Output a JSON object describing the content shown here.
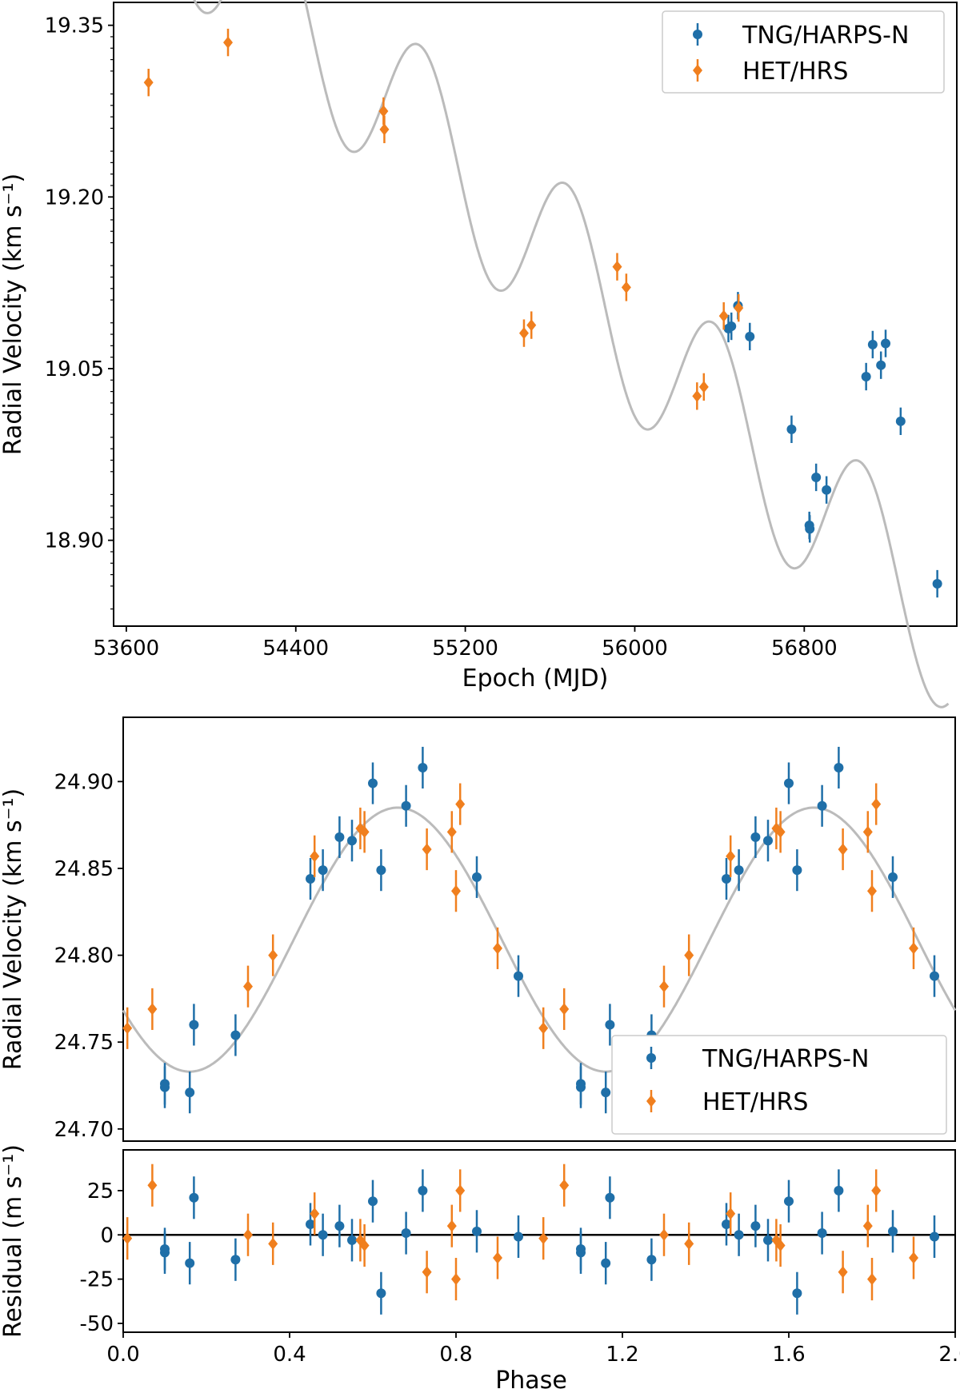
{
  "chart_data": [
    {
      "id": "time",
      "type": "scatter",
      "xlabel": "Epoch (MJD)",
      "ylabel": "Radial Velocity (km s⁻¹)",
      "xlim": [
        53540,
        57520
      ],
      "ylim": [
        18.825,
        19.37
      ],
      "xticks": [
        53600,
        54400,
        55200,
        56000,
        56800
      ],
      "yticks": [
        18.9,
        19.05,
        19.2,
        19.35
      ],
      "ytick_decimals": 2,
      "legend": "top-right",
      "model": {
        "color": "#bbbbbb",
        "x_range": [
          53700,
          57480
        ],
        "offset": 19.5,
        "slope": -0.000175,
        "amplitude": 0.075,
        "period": 693,
        "phase_epoch": 54300
      },
      "series": [
        {
          "name": "TNG/HARPS-N",
          "marker": "circle",
          "color": "#1f6fa8",
          "points": [
            {
              "x": 56442,
              "y": 19.085,
              "err": 0.012
            },
            {
              "x": 56456,
              "y": 19.087,
              "err": 0.012
            },
            {
              "x": 56487,
              "y": 19.105,
              "err": 0.012
            },
            {
              "x": 56543,
              "y": 19.078,
              "err": 0.012
            },
            {
              "x": 56740,
              "y": 18.997,
              "err": 0.012
            },
            {
              "x": 56824,
              "y": 18.913,
              "err": 0.012
            },
            {
              "x": 56826,
              "y": 18.91,
              "err": 0.012
            },
            {
              "x": 56856,
              "y": 18.955,
              "err": 0.012
            },
            {
              "x": 56905,
              "y": 18.944,
              "err": 0.012
            },
            {
              "x": 57092,
              "y": 19.043,
              "err": 0.012
            },
            {
              "x": 57123,
              "y": 19.071,
              "err": 0.012
            },
            {
              "x": 57162,
              "y": 19.053,
              "err": 0.012
            },
            {
              "x": 57184,
              "y": 19.072,
              "err": 0.012
            },
            {
              "x": 57255,
              "y": 19.004,
              "err": 0.012
            },
            {
              "x": 57428,
              "y": 18.862,
              "err": 0.012
            }
          ]
        },
        {
          "name": "HET/HRS",
          "marker": "diamond",
          "color": "#f07f1e",
          "points": [
            {
              "x": 53705,
              "y": 19.3,
              "err": 0.012
            },
            {
              "x": 54080,
              "y": 19.335,
              "err": 0.012
            },
            {
              "x": 54814,
              "y": 19.275,
              "err": 0.012
            },
            {
              "x": 54818,
              "y": 19.259,
              "err": 0.012
            },
            {
              "x": 55477,
              "y": 19.081,
              "err": 0.012
            },
            {
              "x": 55512,
              "y": 19.088,
              "err": 0.012
            },
            {
              "x": 55917,
              "y": 19.139,
              "err": 0.012
            },
            {
              "x": 55960,
              "y": 19.121,
              "err": 0.012
            },
            {
              "x": 56294,
              "y": 19.026,
              "err": 0.012
            },
            {
              "x": 56326,
              "y": 19.034,
              "err": 0.012
            },
            {
              "x": 56420,
              "y": 19.096,
              "err": 0.012
            },
            {
              "x": 56490,
              "y": 19.103,
              "err": 0.012
            }
          ]
        }
      ]
    },
    {
      "id": "phase",
      "type": "scatter",
      "xlabel": "",
      "ylabel": "Radial Velocity (km s⁻¹)",
      "xlim": [
        0.0,
        2.0
      ],
      "ylim": [
        24.693,
        24.937
      ],
      "yticks": [
        24.7,
        24.75,
        24.8,
        24.85,
        24.9
      ],
      "ytick_decimals": 2,
      "legend": "bottom-right",
      "model": {
        "color": "#bbbbbb",
        "type": "sine",
        "mean": 24.809,
        "amplitude": 0.076,
        "peak_phase": 0.66
      },
      "series": [
        {
          "name": "TNG/HARPS-N",
          "marker": "circle",
          "color": "#1f6fa8",
          "points": [
            {
              "x": 0.1,
              "y": 24.726,
              "err": 0.012
            },
            {
              "x": 0.1,
              "y": 24.724,
              "err": 0.012
            },
            {
              "x": 0.16,
              "y": 24.721,
              "err": 0.012
            },
            {
              "x": 0.17,
              "y": 24.76,
              "err": 0.012
            },
            {
              "x": 0.27,
              "y": 24.754,
              "err": 0.012
            },
            {
              "x": 0.45,
              "y": 24.844,
              "err": 0.012
            },
            {
              "x": 0.48,
              "y": 24.849,
              "err": 0.012
            },
            {
              "x": 0.52,
              "y": 24.868,
              "err": 0.012
            },
            {
              "x": 0.55,
              "y": 24.866,
              "err": 0.012
            },
            {
              "x": 0.6,
              "y": 24.899,
              "err": 0.012
            },
            {
              "x": 0.62,
              "y": 24.849,
              "err": 0.012
            },
            {
              "x": 0.68,
              "y": 24.886,
              "err": 0.012
            },
            {
              "x": 0.72,
              "y": 24.908,
              "err": 0.012
            },
            {
              "x": 0.85,
              "y": 24.845,
              "err": 0.012
            },
            {
              "x": 0.95,
              "y": 24.788,
              "err": 0.012
            },
            {
              "x": 1.1,
              "y": 24.726,
              "err": 0.012
            },
            {
              "x": 1.1,
              "y": 24.724,
              "err": 0.012
            },
            {
              "x": 1.16,
              "y": 24.721,
              "err": 0.012
            },
            {
              "x": 1.17,
              "y": 24.76,
              "err": 0.012
            },
            {
              "x": 1.27,
              "y": 24.754,
              "err": 0.012
            },
            {
              "x": 1.45,
              "y": 24.844,
              "err": 0.012
            },
            {
              "x": 1.48,
              "y": 24.849,
              "err": 0.012
            },
            {
              "x": 1.52,
              "y": 24.868,
              "err": 0.012
            },
            {
              "x": 1.55,
              "y": 24.866,
              "err": 0.012
            },
            {
              "x": 1.6,
              "y": 24.899,
              "err": 0.012
            },
            {
              "x": 1.62,
              "y": 24.849,
              "err": 0.012
            },
            {
              "x": 1.68,
              "y": 24.886,
              "err": 0.012
            },
            {
              "x": 1.72,
              "y": 24.908,
              "err": 0.012
            },
            {
              "x": 1.85,
              "y": 24.845,
              "err": 0.012
            },
            {
              "x": 1.95,
              "y": 24.788,
              "err": 0.012
            }
          ]
        },
        {
          "name": "HET/HRS",
          "marker": "diamond",
          "color": "#f07f1e",
          "points": [
            {
              "x": 0.01,
              "y": 24.758,
              "err": 0.012
            },
            {
              "x": 0.07,
              "y": 24.769,
              "err": 0.012
            },
            {
              "x": 0.3,
              "y": 24.782,
              "err": 0.012
            },
            {
              "x": 0.36,
              "y": 24.8,
              "err": 0.012
            },
            {
              "x": 0.46,
              "y": 24.857,
              "err": 0.012
            },
            {
              "x": 0.57,
              "y": 24.873,
              "err": 0.012
            },
            {
              "x": 0.58,
              "y": 24.871,
              "err": 0.012
            },
            {
              "x": 0.73,
              "y": 24.861,
              "err": 0.012
            },
            {
              "x": 0.79,
              "y": 24.871,
              "err": 0.012
            },
            {
              "x": 0.8,
              "y": 24.837,
              "err": 0.012
            },
            {
              "x": 0.81,
              "y": 24.887,
              "err": 0.012
            },
            {
              "x": 0.9,
              "y": 24.804,
              "err": 0.012
            },
            {
              "x": 1.01,
              "y": 24.758,
              "err": 0.012
            },
            {
              "x": 1.06,
              "y": 24.769,
              "err": 0.012
            },
            {
              "x": 1.3,
              "y": 24.782,
              "err": 0.012
            },
            {
              "x": 1.36,
              "y": 24.8,
              "err": 0.012
            },
            {
              "x": 1.46,
              "y": 24.857,
              "err": 0.012
            },
            {
              "x": 1.57,
              "y": 24.873,
              "err": 0.012
            },
            {
              "x": 1.58,
              "y": 24.871,
              "err": 0.012
            },
            {
              "x": 1.73,
              "y": 24.861,
              "err": 0.012
            },
            {
              "x": 1.79,
              "y": 24.871,
              "err": 0.012
            },
            {
              "x": 1.8,
              "y": 24.837,
              "err": 0.012
            },
            {
              "x": 1.81,
              "y": 24.887,
              "err": 0.012
            },
            {
              "x": 1.9,
              "y": 24.804,
              "err": 0.012
            }
          ]
        }
      ]
    },
    {
      "id": "resid",
      "type": "scatter",
      "xlabel": "Phase",
      "ylabel": "Residual (m s⁻¹)",
      "xlim": [
        0.0,
        2.0
      ],
      "ylim": [
        -55,
        48
      ],
      "xticks": [
        0.0,
        0.4,
        0.8,
        1.2,
        1.6,
        2.0
      ],
      "xtick_decimals": 1,
      "yticks": [
        -50,
        -25,
        0,
        25
      ],
      "ytick_decimals": 0,
      "zero_line": true,
      "series": [
        {
          "name": "TNG/HARPS-N",
          "marker": "circle",
          "color": "#1f6fa8",
          "points": [
            {
              "x": 0.1,
              "y": -8,
              "err": 12
            },
            {
              "x": 0.1,
              "y": -10,
              "err": 12
            },
            {
              "x": 0.16,
              "y": -16,
              "err": 12
            },
            {
              "x": 0.17,
              "y": 21,
              "err": 12
            },
            {
              "x": 0.27,
              "y": -14,
              "err": 12
            },
            {
              "x": 0.45,
              "y": 6,
              "err": 12
            },
            {
              "x": 0.48,
              "y": 0,
              "err": 12
            },
            {
              "x": 0.52,
              "y": 5,
              "err": 12
            },
            {
              "x": 0.55,
              "y": -3,
              "err": 12
            },
            {
              "x": 0.6,
              "y": 19,
              "err": 12
            },
            {
              "x": 0.62,
              "y": -33,
              "err": 12
            },
            {
              "x": 0.68,
              "y": 1,
              "err": 12
            },
            {
              "x": 0.72,
              "y": 25,
              "err": 12
            },
            {
              "x": 0.85,
              "y": 2,
              "err": 12
            },
            {
              "x": 0.95,
              "y": -1,
              "err": 12
            },
            {
              "x": 1.1,
              "y": -8,
              "err": 12
            },
            {
              "x": 1.1,
              "y": -10,
              "err": 12
            },
            {
              "x": 1.16,
              "y": -16,
              "err": 12
            },
            {
              "x": 1.17,
              "y": 21,
              "err": 12
            },
            {
              "x": 1.27,
              "y": -14,
              "err": 12
            },
            {
              "x": 1.45,
              "y": 6,
              "err": 12
            },
            {
              "x": 1.48,
              "y": 0,
              "err": 12
            },
            {
              "x": 1.52,
              "y": 5,
              "err": 12
            },
            {
              "x": 1.55,
              "y": -3,
              "err": 12
            },
            {
              "x": 1.6,
              "y": 19,
              "err": 12
            },
            {
              "x": 1.62,
              "y": -33,
              "err": 12
            },
            {
              "x": 1.68,
              "y": 1,
              "err": 12
            },
            {
              "x": 1.72,
              "y": 25,
              "err": 12
            },
            {
              "x": 1.85,
              "y": 2,
              "err": 12
            },
            {
              "x": 1.95,
              "y": -1,
              "err": 12
            }
          ]
        },
        {
          "name": "HET/HRS",
          "marker": "diamond",
          "color": "#f07f1e",
          "points": [
            {
              "x": 0.01,
              "y": -2,
              "err": 12
            },
            {
              "x": 0.07,
              "y": 28,
              "err": 12
            },
            {
              "x": 0.3,
              "y": 0,
              "err": 12
            },
            {
              "x": 0.36,
              "y": -5,
              "err": 12
            },
            {
              "x": 0.46,
              "y": 12,
              "err": 12
            },
            {
              "x": 0.57,
              "y": -3,
              "err": 12
            },
            {
              "x": 0.58,
              "y": -6,
              "err": 12
            },
            {
              "x": 0.73,
              "y": -21,
              "err": 12
            },
            {
              "x": 0.79,
              "y": 5,
              "err": 12
            },
            {
              "x": 0.8,
              "y": -25,
              "err": 12
            },
            {
              "x": 0.81,
              "y": 25,
              "err": 12
            },
            {
              "x": 0.9,
              "y": -13,
              "err": 12
            },
            {
              "x": 1.01,
              "y": -2,
              "err": 12
            },
            {
              "x": 1.06,
              "y": 28,
              "err": 12
            },
            {
              "x": 1.3,
              "y": 0,
              "err": 12
            },
            {
              "x": 1.36,
              "y": -5,
              "err": 12
            },
            {
              "x": 1.46,
              "y": 12,
              "err": 12
            },
            {
              "x": 1.57,
              "y": -3,
              "err": 12
            },
            {
              "x": 1.58,
              "y": -6,
              "err": 12
            },
            {
              "x": 1.73,
              "y": -21,
              "err": 12
            },
            {
              "x": 1.79,
              "y": 5,
              "err": 12
            },
            {
              "x": 1.8,
              "y": -25,
              "err": 12
            },
            {
              "x": 1.81,
              "y": 25,
              "err": 12
            },
            {
              "x": 1.9,
              "y": -13,
              "err": 12
            }
          ]
        }
      ]
    }
  ]
}
